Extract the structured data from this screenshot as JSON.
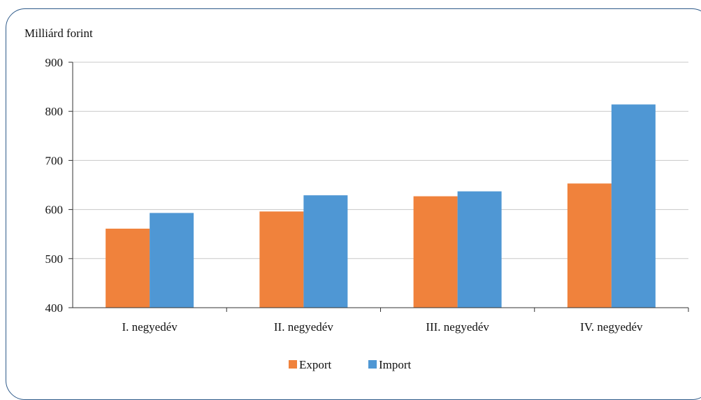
{
  "chart_data": {
    "type": "bar",
    "ylabel": "Milliárd forint",
    "ylim": [
      400,
      900
    ],
    "yticks": [
      400,
      500,
      600,
      700,
      800,
      900
    ],
    "categories": [
      "I. negyedév",
      "II. negyedév",
      "III. negyedév",
      "IV. negyedév"
    ],
    "series": [
      {
        "name": "Export",
        "color": "#f0823c",
        "values": [
          561,
          596,
          627,
          653
        ]
      },
      {
        "name": "Import",
        "color": "#4f97d4",
        "values": [
          593,
          629,
          637,
          814
        ]
      }
    ],
    "grid": true,
    "legend_position": "bottom"
  }
}
